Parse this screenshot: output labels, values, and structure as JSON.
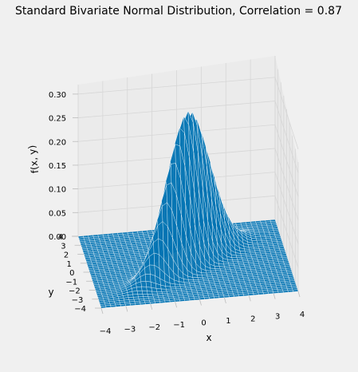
{
  "chart_data": {
    "type": "surface",
    "title": "Standard Bivariate Normal Distribution, Correlation = 0.87",
    "xlabel": "x",
    "ylabel": "y",
    "zlabel": "f(x, y)",
    "correlation": 0.87,
    "xlim": [
      -4,
      4
    ],
    "ylim": [
      -4,
      4
    ],
    "zlim": [
      0,
      0.32
    ],
    "x_ticks": [
      "−4",
      "−3",
      "−2",
      "−1",
      "0",
      "1",
      "2",
      "3",
      "4"
    ],
    "y_ticks": [
      "−4",
      "−3",
      "−2",
      "−1",
      "0",
      "1",
      "2",
      "3",
      "4"
    ],
    "z_ticks": [
      "0.00",
      "0.05",
      "0.10",
      "0.15",
      "0.20",
      "0.25",
      "0.30"
    ],
    "peak_value": 0.32,
    "grid": true,
    "surface_color": "#0072b2",
    "wire_color": "#ffffff",
    "background": "#f0f0f0"
  }
}
